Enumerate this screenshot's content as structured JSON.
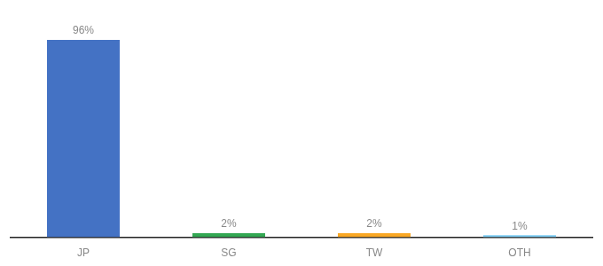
{
  "chart_data": {
    "type": "bar",
    "categories": [
      "JP",
      "SG",
      "TW",
      "OTH"
    ],
    "values": [
      96,
      2,
      2,
      1
    ],
    "value_labels": [
      "96%",
      "2%",
      "2%",
      "1%"
    ],
    "data_labels": true,
    "colors": [
      "#4472c4",
      "#33a853",
      "#f9a825",
      "#7ecef4"
    ],
    "ylim": [
      0,
      105
    ],
    "grid": false,
    "tick_labels": "x"
  }
}
